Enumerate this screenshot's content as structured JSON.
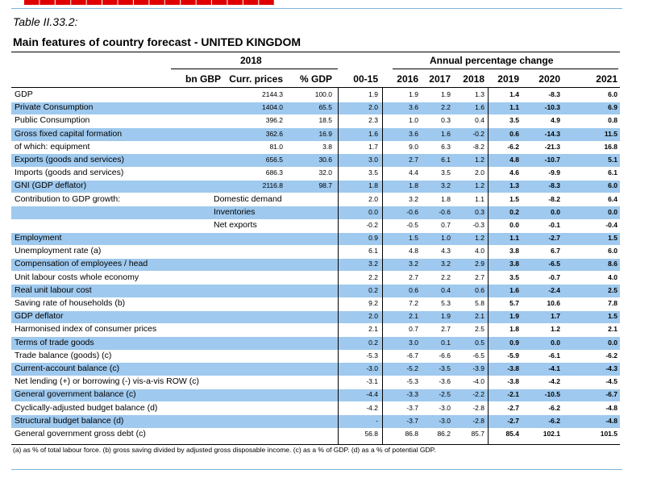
{
  "table_title": "Table II.33.2:",
  "table_subtitle": "Main features of country forecast - UNITED KINGDOM",
  "header": {
    "year": "2018",
    "annual_change": "Annual percentage change",
    "col_unit": "bn GBP",
    "col_curr": "Curr. prices",
    "col_pct": "% GDP",
    "col_0015": "00-15",
    "col_2016": "2016",
    "col_2017": "2017",
    "col_2018": "2018",
    "col_2019": "2019",
    "col_2020": "2020",
    "col_2021": "2021"
  },
  "rows": [
    {
      "label": "GDP",
      "sub": "",
      "curr": "2144.3",
      "pct": "100.0",
      "v": [
        "1.9",
        "1.9",
        "1.9",
        "1.3",
        "1.4",
        "-8.3",
        "6.0"
      ],
      "shade": false
    },
    {
      "label": "Private Consumption",
      "sub": "",
      "curr": "1404.0",
      "pct": "65.5",
      "v": [
        "2.0",
        "3.6",
        "2.2",
        "1.6",
        "1.1",
        "-10.3",
        "6.9"
      ],
      "shade": true
    },
    {
      "label": "Public Consumption",
      "sub": "",
      "curr": "396.2",
      "pct": "18.5",
      "v": [
        "2.3",
        "1.0",
        "0.3",
        "0.4",
        "3.5",
        "4.9",
        "0.8"
      ],
      "shade": false
    },
    {
      "label": "Gross fixed capital formation",
      "sub": "",
      "curr": "362.6",
      "pct": "16.9",
      "v": [
        "1.6",
        "3.6",
        "1.6",
        "-0.2",
        "0.6",
        "-14.3",
        "11.5"
      ],
      "shade": true
    },
    {
      "label": "of which: equipment",
      "sub": "",
      "curr": "81.0",
      "pct": "3.8",
      "v": [
        "1.7",
        "9.0",
        "6.3",
        "-8.2",
        "-6.2",
        "-21.3",
        "16.8"
      ],
      "shade": false
    },
    {
      "label": "Exports (goods and services)",
      "sub": "",
      "curr": "656.5",
      "pct": "30.6",
      "v": [
        "3.0",
        "2.7",
        "6.1",
        "1.2",
        "4.8",
        "-10.7",
        "5.1"
      ],
      "shade": true
    },
    {
      "label": "Imports (goods and services)",
      "sub": "",
      "curr": "686.3",
      "pct": "32.0",
      "v": [
        "3.5",
        "4.4",
        "3.5",
        "2.0",
        "4.6",
        "-9.9",
        "6.1"
      ],
      "shade": false
    },
    {
      "label": "GNI (GDP deflator)",
      "sub": "",
      "curr": "2116.8",
      "pct": "98.7",
      "v": [
        "1.8",
        "1.8",
        "3.2",
        "1.2",
        "1.3",
        "-8.3",
        "6.0"
      ],
      "shade": true
    },
    {
      "label": "Contribution to GDP growth:",
      "sub": "Domestic demand",
      "curr": "",
      "pct": "",
      "v": [
        "2.0",
        "3.2",
        "1.8",
        "1.1",
        "1.5",
        "-8.2",
        "6.4"
      ],
      "shade": false
    },
    {
      "label": "",
      "sub": "Inventories",
      "curr": "",
      "pct": "",
      "v": [
        "0.0",
        "-0.6",
        "-0.6",
        "0.3",
        "0.2",
        "0.0",
        "0.0"
      ],
      "shade": true
    },
    {
      "label": "",
      "sub": "Net exports",
      "curr": "",
      "pct": "",
      "v": [
        "-0.2",
        "-0.5",
        "0.7",
        "-0.3",
        "0.0",
        "-0.1",
        "-0.4"
      ],
      "shade": false
    },
    {
      "label": "Employment",
      "sub": "",
      "curr": "",
      "pct": "",
      "v": [
        "0.9",
        "1.5",
        "1.0",
        "1.2",
        "1.1",
        "-2.7",
        "1.5"
      ],
      "shade": true
    },
    {
      "label": "Unemployment rate (a)",
      "sub": "",
      "curr": "",
      "pct": "",
      "v": [
        "6.1",
        "4.8",
        "4.3",
        "4.0",
        "3.8",
        "6.7",
        "6.0"
      ],
      "shade": false
    },
    {
      "label": "Compensation of employees / head",
      "sub": "",
      "curr": "",
      "pct": "",
      "v": [
        "3.2",
        "3.2",
        "3.2",
        "2.9",
        "3.8",
        "-6.5",
        "8.6"
      ],
      "shade": true
    },
    {
      "label": "Unit labour costs whole economy",
      "sub": "",
      "curr": "",
      "pct": "",
      "v": [
        "2.2",
        "2.7",
        "2.2",
        "2.7",
        "3.5",
        "-0.7",
        "4.0"
      ],
      "shade": false
    },
    {
      "label": "Real unit labour cost",
      "sub": "",
      "curr": "",
      "pct": "",
      "v": [
        "0.2",
        "0.6",
        "0.4",
        "0.6",
        "1.6",
        "-2.4",
        "2.5"
      ],
      "shade": true
    },
    {
      "label": "Saving rate of households (b)",
      "sub": "",
      "curr": "",
      "pct": "",
      "v": [
        "9.2",
        "7.2",
        "5.3",
        "5.8",
        "5.7",
        "10.6",
        "7.8"
      ],
      "shade": false
    },
    {
      "label": "GDP deflator",
      "sub": "",
      "curr": "",
      "pct": "",
      "v": [
        "2.0",
        "2.1",
        "1.9",
        "2.1",
        "1.9",
        "1.7",
        "1.5"
      ],
      "shade": true
    },
    {
      "label": "Harmonised index of consumer prices",
      "sub": "",
      "curr": "",
      "pct": "",
      "v": [
        "2.1",
        "0.7",
        "2.7",
        "2.5",
        "1.8",
        "1.2",
        "2.1"
      ],
      "shade": false
    },
    {
      "label": "Terms of trade goods",
      "sub": "",
      "curr": "",
      "pct": "",
      "v": [
        "0.2",
        "3.0",
        "0.1",
        "0.5",
        "0.9",
        "0.0",
        "0.0"
      ],
      "shade": true
    },
    {
      "label": "Trade balance (goods) (c)",
      "sub": "",
      "curr": "",
      "pct": "",
      "v": [
        "-5.3",
        "-6.7",
        "-6.6",
        "-6.5",
        "-5.9",
        "-6.1",
        "-6.2"
      ],
      "shade": false
    },
    {
      "label": "Current-account balance (c)",
      "sub": "",
      "curr": "",
      "pct": "",
      "v": [
        "-3.0",
        "-5.2",
        "-3.5",
        "-3.9",
        "-3.8",
        "-4.1",
        "-4.3"
      ],
      "shade": true
    },
    {
      "label": "Net lending (+) or borrowing (-) vis-a-vis ROW (c)",
      "sub": "",
      "curr": "",
      "pct": "",
      "v": [
        "-3.1",
        "-5.3",
        "-3.6",
        "-4.0",
        "-3.8",
        "-4.2",
        "-4.5"
      ],
      "shade": false
    },
    {
      "label": "General government balance (c)",
      "sub": "",
      "curr": "",
      "pct": "",
      "v": [
        "-4.4",
        "-3.3",
        "-2.5",
        "-2.2",
        "-2.1",
        "-10.5",
        "-6.7"
      ],
      "shade": true
    },
    {
      "label": "Cyclically-adjusted budget balance (d)",
      "sub": "",
      "curr": "",
      "pct": "",
      "v": [
        "-4.2",
        "-3.7",
        "-3.0",
        "-2.8",
        "-2.7",
        "-6.2",
        "-4.8"
      ],
      "shade": false
    },
    {
      "label": "Structural budget balance (d)",
      "sub": "",
      "curr": "",
      "pct": "",
      "v": [
        "-",
        "-3.7",
        "-3.0",
        "-2.8",
        "-2.7",
        "-6.2",
        "-4.8"
      ],
      "shade": true
    },
    {
      "label": "General government gross debt (c)",
      "sub": "",
      "curr": "",
      "pct": "",
      "v": [
        "56.8",
        "86.8",
        "86.2",
        "85.7",
        "85.4",
        "102.1",
        "101.5"
      ],
      "shade": false
    }
  ],
  "footnote": "(a) as % of total labour force. (b) gross saving divided by adjusted gross disposable income. (c) as a % of GDP. (d) as a % of potential GDP.",
  "colors": {
    "shade": "#9fc9ee",
    "accent_line": "#7fb2d9",
    "red_fragment": "#e00000"
  }
}
